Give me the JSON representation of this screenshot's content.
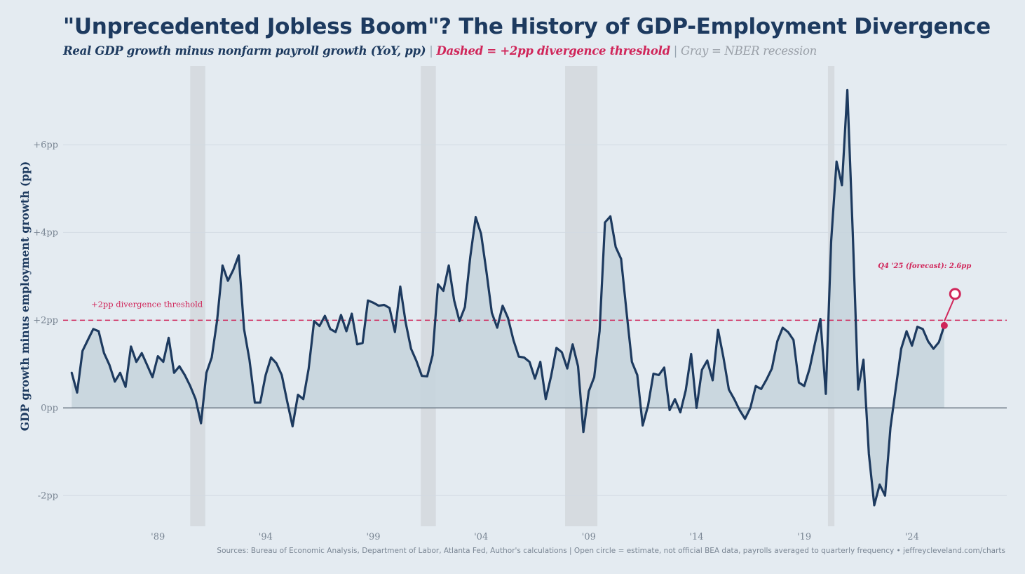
{
  "title": "\"Unprecedented Jobless Boom\"? The History of GDP-Employment Divergence",
  "subtitle": {
    "main": "Real GDP growth minus nonfarm payroll growth (YoY, pp)",
    "sep1": " | ",
    "dashed": "Dashed",
    "dashed_def": " = +2pp divergence threshold",
    "sep2": " | ",
    "gray": "Gray",
    "gray_def": " = NBER recession"
  },
  "source": "Sources: Bureau of Economic Analysis, Department of Labor, Atlanta Fed, Author's calculations | Open circle = estimate, not official BEA data, payrolls averaged to quarterly frequency • jeffreycleveland.com/charts",
  "colors": {
    "background": "#e4ebf1",
    "line": "#1d3a5f",
    "fill": "#c5d3dc",
    "threshold": "#d0265a",
    "recession": "#d6dbe0"
  },
  "chart_data": {
    "type": "area",
    "ylabel": "GDP growth minus employment growth (pp)",
    "ylim": [
      -2.7,
      7.8
    ],
    "xlim": [
      1984.6,
      2028.4
    ],
    "yticks": [
      {
        "v": -2,
        "label": "-2pp"
      },
      {
        "v": 0,
        "label": "0pp"
      },
      {
        "v": 2,
        "label": "+2pp"
      },
      {
        "v": 4,
        "label": "+4pp"
      },
      {
        "v": 6,
        "label": "+6pp"
      }
    ],
    "xticks": [
      {
        "v": 1989,
        "label": "'89"
      },
      {
        "v": 1994,
        "label": "'94"
      },
      {
        "v": 1999,
        "label": "'99"
      },
      {
        "v": 2004,
        "label": "'04"
      },
      {
        "v": 2009,
        "label": "'09"
      },
      {
        "v": 2014,
        "label": "'14"
      },
      {
        "v": 2019,
        "label": "'19"
      },
      {
        "v": 2024,
        "label": "'24"
      }
    ],
    "grid": true,
    "threshold": {
      "value": 2,
      "label": "+2pp divergence threshold"
    },
    "forecast": {
      "x": 2026.0,
      "y": 2.6,
      "label": "Q4 '25 (forecast): 2.6pp"
    },
    "recessions": [
      [
        1990.5,
        1991.2
      ],
      [
        2001.2,
        2001.9
      ],
      [
        2007.9,
        2009.4
      ],
      [
        2020.1,
        2020.4
      ]
    ],
    "series": [
      {
        "points": [
          [
            1985.0,
            0.8
          ],
          [
            1985.25,
            0.35
          ],
          [
            1985.5,
            1.3
          ],
          [
            1985.75,
            1.55
          ],
          [
            1986.0,
            1.8
          ],
          [
            1986.25,
            1.75
          ],
          [
            1986.5,
            1.25
          ],
          [
            1986.75,
            0.98
          ],
          [
            1987.0,
            0.6
          ],
          [
            1987.25,
            0.8
          ],
          [
            1987.5,
            0.48
          ],
          [
            1987.75,
            1.4
          ],
          [
            1988.0,
            1.05
          ],
          [
            1988.25,
            1.25
          ],
          [
            1988.5,
            0.98
          ],
          [
            1988.75,
            0.7
          ],
          [
            1989.0,
            1.18
          ],
          [
            1989.25,
            1.05
          ],
          [
            1989.5,
            1.6
          ],
          [
            1989.75,
            0.8
          ],
          [
            1990.0,
            0.95
          ],
          [
            1990.25,
            0.75
          ],
          [
            1990.5,
            0.5
          ],
          [
            1990.75,
            0.2
          ],
          [
            1991.0,
            -0.35
          ],
          [
            1991.25,
            0.8
          ],
          [
            1991.5,
            1.15
          ],
          [
            1991.75,
            2.0
          ],
          [
            1992.0,
            3.25
          ],
          [
            1992.25,
            2.9
          ],
          [
            1992.5,
            3.15
          ],
          [
            1992.75,
            3.48
          ],
          [
            1993.0,
            1.8
          ],
          [
            1993.25,
            1.1
          ],
          [
            1993.5,
            0.12
          ],
          [
            1993.75,
            0.12
          ],
          [
            1994.0,
            0.75
          ],
          [
            1994.25,
            1.15
          ],
          [
            1994.5,
            1.02
          ],
          [
            1994.75,
            0.75
          ],
          [
            1995.0,
            0.15
          ],
          [
            1995.25,
            -0.42
          ],
          [
            1995.5,
            0.3
          ],
          [
            1995.75,
            0.2
          ],
          [
            1996.0,
            0.9
          ],
          [
            1996.25,
            1.98
          ],
          [
            1996.5,
            1.87
          ],
          [
            1996.75,
            2.1
          ],
          [
            1997.0,
            1.8
          ],
          [
            1997.25,
            1.73
          ],
          [
            1997.5,
            2.12
          ],
          [
            1997.75,
            1.75
          ],
          [
            1998.0,
            2.15
          ],
          [
            1998.25,
            1.45
          ],
          [
            1998.5,
            1.48
          ],
          [
            1998.75,
            2.45
          ],
          [
            1999.0,
            2.4
          ],
          [
            1999.25,
            2.33
          ],
          [
            1999.5,
            2.35
          ],
          [
            1999.75,
            2.28
          ],
          [
            2000.0,
            1.73
          ],
          [
            2000.25,
            2.77
          ],
          [
            2000.5,
            1.95
          ],
          [
            2000.75,
            1.35
          ],
          [
            2001.0,
            1.07
          ],
          [
            2001.25,
            0.73
          ],
          [
            2001.5,
            0.72
          ],
          [
            2001.75,
            1.2
          ],
          [
            2002.0,
            2.82
          ],
          [
            2002.25,
            2.67
          ],
          [
            2002.5,
            3.25
          ],
          [
            2002.75,
            2.45
          ],
          [
            2003.0,
            1.98
          ],
          [
            2003.25,
            2.3
          ],
          [
            2003.5,
            3.45
          ],
          [
            2003.75,
            4.35
          ],
          [
            2004.0,
            3.97
          ],
          [
            2004.25,
            3.1
          ],
          [
            2004.5,
            2.17
          ],
          [
            2004.75,
            1.83
          ],
          [
            2005.0,
            2.33
          ],
          [
            2005.25,
            2.05
          ],
          [
            2005.5,
            1.55
          ],
          [
            2005.75,
            1.17
          ],
          [
            2006.0,
            1.15
          ],
          [
            2006.25,
            1.05
          ],
          [
            2006.5,
            0.67
          ],
          [
            2006.75,
            1.05
          ],
          [
            2007.0,
            0.2
          ],
          [
            2007.25,
            0.72
          ],
          [
            2007.5,
            1.37
          ],
          [
            2007.75,
            1.27
          ],
          [
            2008.0,
            0.9
          ],
          [
            2008.25,
            1.45
          ],
          [
            2008.5,
            0.95
          ],
          [
            2008.75,
            -0.55
          ],
          [
            2009.0,
            0.38
          ],
          [
            2009.25,
            0.7
          ],
          [
            2009.5,
            1.75
          ],
          [
            2009.75,
            4.23
          ],
          [
            2010.0,
            4.37
          ],
          [
            2010.25,
            3.67
          ],
          [
            2010.5,
            3.4
          ],
          [
            2010.75,
            2.2
          ],
          [
            2011.0,
            1.05
          ],
          [
            2011.25,
            0.75
          ],
          [
            2011.5,
            -0.4
          ],
          [
            2011.75,
            0.05
          ],
          [
            2012.0,
            0.78
          ],
          [
            2012.25,
            0.75
          ],
          [
            2012.5,
            0.92
          ],
          [
            2012.75,
            -0.05
          ],
          [
            2013.0,
            0.2
          ],
          [
            2013.25,
            -0.1
          ],
          [
            2013.5,
            0.4
          ],
          [
            2013.75,
            1.23
          ],
          [
            2014.0,
            0.0
          ],
          [
            2014.25,
            0.87
          ],
          [
            2014.5,
            1.08
          ],
          [
            2014.75,
            0.63
          ],
          [
            2015.0,
            1.78
          ],
          [
            2015.25,
            1.15
          ],
          [
            2015.5,
            0.42
          ],
          [
            2015.75,
            0.2
          ],
          [
            2016.0,
            -0.05
          ],
          [
            2016.25,
            -0.25
          ],
          [
            2016.5,
            0.0
          ],
          [
            2016.75,
            0.5
          ],
          [
            2017.0,
            0.43
          ],
          [
            2017.25,
            0.65
          ],
          [
            2017.5,
            0.9
          ],
          [
            2017.75,
            1.52
          ],
          [
            2018.0,
            1.83
          ],
          [
            2018.25,
            1.73
          ],
          [
            2018.5,
            1.55
          ],
          [
            2018.75,
            0.58
          ],
          [
            2019.0,
            0.5
          ],
          [
            2019.25,
            0.9
          ],
          [
            2019.5,
            1.48
          ],
          [
            2019.75,
            2.03
          ],
          [
            2020.0,
            0.32
          ],
          [
            2020.25,
            3.8
          ],
          [
            2020.5,
            5.62
          ],
          [
            2020.75,
            5.08
          ],
          [
            2021.0,
            7.25
          ],
          [
            2021.25,
            4.0
          ],
          [
            2021.5,
            0.42
          ],
          [
            2021.75,
            1.1
          ],
          [
            2022.0,
            -1.05
          ],
          [
            2022.25,
            -2.22
          ],
          [
            2022.5,
            -1.75
          ],
          [
            2022.75,
            -2.0
          ],
          [
            2023.0,
            -0.45
          ],
          [
            2023.25,
            0.45
          ],
          [
            2023.5,
            1.35
          ],
          [
            2023.75,
            1.75
          ],
          [
            2024.0,
            1.42
          ],
          [
            2024.25,
            1.85
          ],
          [
            2024.5,
            1.8
          ],
          [
            2024.75,
            1.52
          ],
          [
            2025.0,
            1.35
          ],
          [
            2025.25,
            1.5
          ],
          [
            2025.5,
            1.88
          ]
        ]
      }
    ]
  }
}
